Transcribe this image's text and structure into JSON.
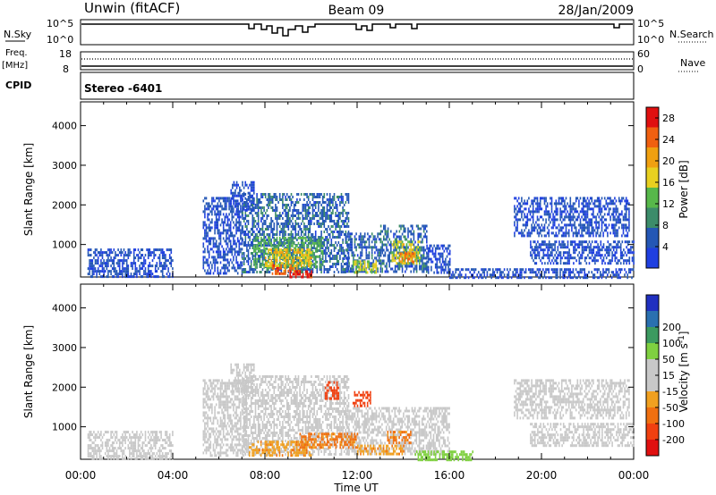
{
  "header": {
    "title_left": "Unwin (fitACF)",
    "title_center": "Beam 09",
    "title_right": "28/Jan/2009"
  },
  "labels": {
    "nsky": "N.Sky",
    "nsky_top": "10^5",
    "nsky_bottom": "10^0",
    "nsearch": "N.Search",
    "nsearch_top": "10^5",
    "nsearch_bottom": "10^0",
    "freq": "Freq.",
    "freq_unit": "[MHz]",
    "freq_top": "18",
    "freq_bottom": "8",
    "nave": "Nave",
    "nave_top": "60",
    "nave_bottom": "0",
    "cpid": "CPID",
    "stereo": "Stereo -6401"
  },
  "colors": {
    "power": [
      "#1f3fe0",
      "#2457b5",
      "#3c8c6a",
      "#57b84a",
      "#e8d020",
      "#f0a010",
      "#f06010",
      "#e01010"
    ],
    "velocity": [
      "#e01010",
      "#f04010",
      "#f07010",
      "#f0a020",
      "#c8c8c8",
      "#c8c8c8",
      "#7fd040",
      "#3c9a60",
      "#2a70b0",
      "#2030c0"
    ]
  },
  "chart_data": [
    {
      "type": "heatmap",
      "name": "power-panel",
      "ylabel": "Slant Range [km]",
      "xlabel": "Time UT",
      "x_ticks": [
        "00:00",
        "04:00",
        "08:00",
        "12:00",
        "16:00",
        "20:00",
        "00:00"
      ],
      "x_range_hours": [
        0,
        24
      ],
      "y_ticks": [
        1000,
        2000,
        3000,
        4000
      ],
      "y_range_km": [
        180,
        4600
      ],
      "colorbar_label": "Power [dB]",
      "colorbar_ticks": [
        4,
        8,
        12,
        16,
        20,
        24,
        28
      ],
      "colorbar_range": [
        0,
        30
      ],
      "regions": [
        {
          "t0": 5.3,
          "t1": 7.0,
          "r0": 300,
          "r1": 2200,
          "power": 4
        },
        {
          "t0": 6.5,
          "t1": 7.5,
          "r0": 1900,
          "r1": 2600,
          "power": 4
        },
        {
          "t0": 7.0,
          "t1": 11.6,
          "r0": 300,
          "r1": 2300,
          "power": 6
        },
        {
          "t0": 7.5,
          "t1": 10.5,
          "r0": 400,
          "r1": 1200,
          "power": 12
        },
        {
          "t0": 8.0,
          "t1": 10.0,
          "r0": 450,
          "r1": 900,
          "power": 18
        },
        {
          "t0": 8.3,
          "t1": 9.5,
          "r0": 250,
          "r1": 500,
          "power": 24
        },
        {
          "t0": 9.0,
          "t1": 10.0,
          "r0": 200,
          "r1": 350,
          "power": 28
        },
        {
          "t0": 11.5,
          "t1": 13.0,
          "r0": 300,
          "r1": 1300,
          "power": 6
        },
        {
          "t0": 11.8,
          "t1": 12.8,
          "r0": 300,
          "r1": 600,
          "power": 16
        },
        {
          "t0": 13.0,
          "t1": 15.0,
          "r0": 300,
          "r1": 1500,
          "power": 6
        },
        {
          "t0": 13.5,
          "t1": 14.7,
          "r0": 500,
          "r1": 1100,
          "power": 16
        },
        {
          "t0": 13.8,
          "t1": 14.5,
          "r0": 550,
          "r1": 800,
          "power": 22
        },
        {
          "t0": 15.0,
          "t1": 16.0,
          "r0": 300,
          "r1": 1000,
          "power": 4
        },
        {
          "t0": 18.8,
          "t1": 23.8,
          "r0": 1200,
          "r1": 2200,
          "power": 4
        },
        {
          "t0": 19.5,
          "t1": 24.0,
          "r0": 500,
          "r1": 1100,
          "power": 4
        },
        {
          "t0": 0.3,
          "t1": 4.0,
          "r0": 200,
          "r1": 900,
          "power": 4
        },
        {
          "t0": 16.0,
          "t1": 24.0,
          "r0": 180,
          "r1": 400,
          "power": 4
        }
      ]
    },
    {
      "type": "heatmap",
      "name": "velocity-panel",
      "ylabel": "Slant Range [km]",
      "xlabel": "Time UT",
      "x_ticks": [
        "00:00",
        "04:00",
        "08:00",
        "12:00",
        "16:00",
        "20:00",
        "00:00"
      ],
      "x_range_hours": [
        0,
        24
      ],
      "y_ticks": [
        1000,
        2000,
        3000,
        4000
      ],
      "y_range_km": [
        180,
        4600
      ],
      "colorbar_label": "Velocity [m s^-1]",
      "colorbar_ticks": [
        -200,
        -100,
        -50,
        -15,
        15,
        50,
        100,
        200
      ],
      "regions": [
        {
          "t0": 5.3,
          "t1": 7.2,
          "r0": 300,
          "r1": 2200,
          "velocity": 0
        },
        {
          "t0": 6.5,
          "t1": 7.5,
          "r0": 1900,
          "r1": 2600,
          "velocity": 0
        },
        {
          "t0": 7.0,
          "t1": 11.6,
          "r0": 300,
          "r1": 2300,
          "velocity": 0
        },
        {
          "t0": 11.5,
          "t1": 16.0,
          "r0": 300,
          "r1": 1500,
          "velocity": 0
        },
        {
          "t0": 7.3,
          "t1": 10.0,
          "r0": 300,
          "r1": 650,
          "velocity": -40
        },
        {
          "t0": 9.5,
          "t1": 12.0,
          "r0": 500,
          "r1": 850,
          "velocity": -60
        },
        {
          "t0": 10.6,
          "t1": 11.2,
          "r0": 1700,
          "r1": 2150,
          "velocity": -120
        },
        {
          "t0": 11.8,
          "t1": 12.6,
          "r0": 1500,
          "r1": 1900,
          "velocity": -150
        },
        {
          "t0": 12.0,
          "t1": 14.0,
          "r0": 300,
          "r1": 550,
          "velocity": -40
        },
        {
          "t0": 13.3,
          "t1": 14.3,
          "r0": 600,
          "r1": 900,
          "velocity": -60
        },
        {
          "t0": 18.8,
          "t1": 23.8,
          "r0": 1200,
          "r1": 2200,
          "velocity": 0
        },
        {
          "t0": 19.5,
          "t1": 24.0,
          "r0": 500,
          "r1": 1100,
          "velocity": 0
        },
        {
          "t0": 0.3,
          "t1": 4.0,
          "r0": 200,
          "r1": 900,
          "velocity": 0
        },
        {
          "t0": 14.5,
          "t1": 17.0,
          "r0": 180,
          "r1": 400,
          "velocity": 30
        }
      ]
    }
  ]
}
